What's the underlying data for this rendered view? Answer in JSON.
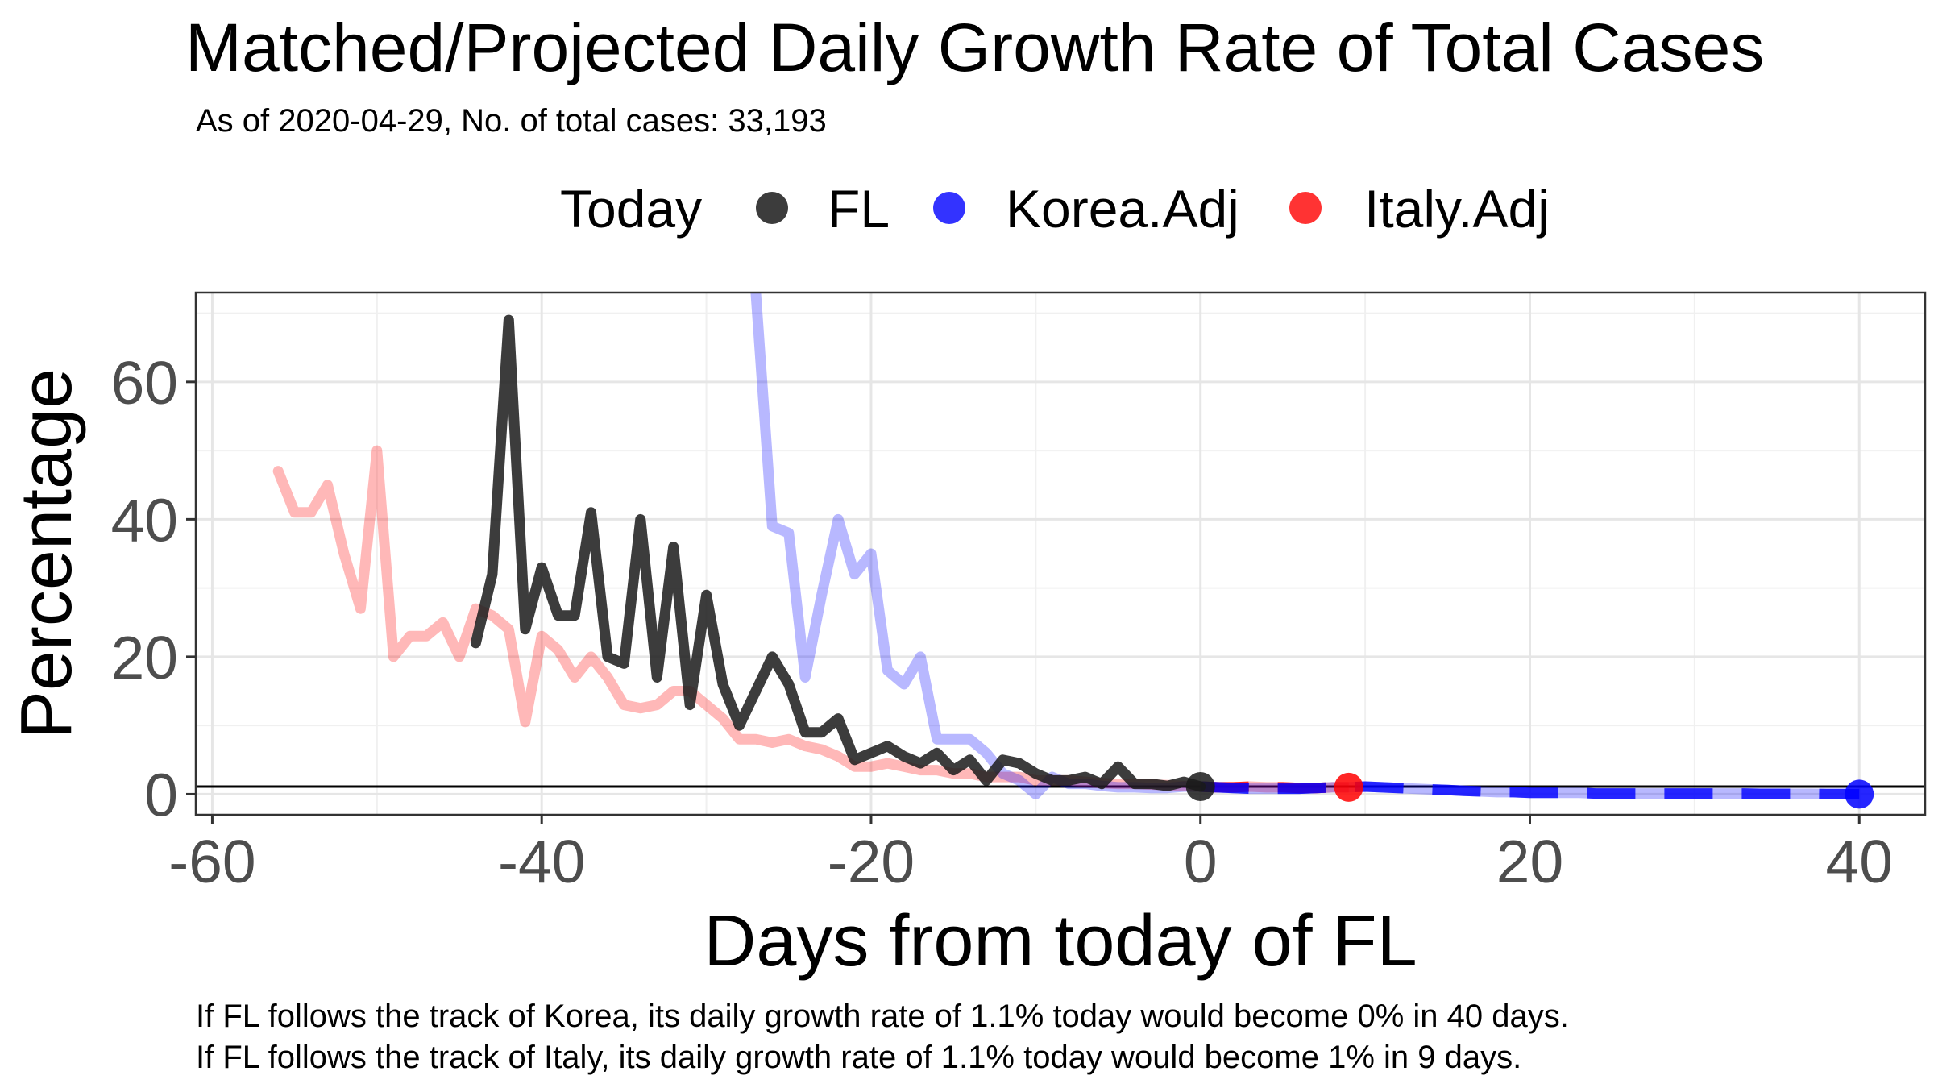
{
  "chart_data": {
    "type": "line",
    "title": "Matched/Projected Daily Growth Rate of Total Cases",
    "subtitle": "As of 2020-04-29, No. of total cases: 33,193",
    "xlabel": "Days from today of FL",
    "ylabel": "Percentage",
    "xlim": [
      -61,
      44
    ],
    "ylim": [
      -3,
      73
    ],
    "x_ticks": [
      -60,
      -40,
      -20,
      0,
      20,
      40
    ],
    "y_ticks": [
      0,
      20,
      40,
      60
    ],
    "grid": true,
    "legend": {
      "title": "Today",
      "placement": "top",
      "items": [
        "FL",
        "Korea.Adj",
        "Italy.Adj"
      ]
    },
    "reference_line_y": 1.1,
    "series": [
      {
        "name": "FL",
        "color": "#1a1a1a",
        "x": [
          -44,
          -43,
          -42,
          -41,
          -40,
          -39,
          -38,
          -37,
          -36,
          -35,
          -34,
          -33,
          -32,
          -31,
          -30,
          -29,
          -28,
          -27,
          -26,
          -25,
          -24,
          -23,
          -22,
          -21,
          -20,
          -19,
          -18,
          -17,
          -16,
          -15,
          -14,
          -13,
          -12,
          -11,
          -10,
          -9,
          -8,
          -7,
          -6,
          -5,
          -4,
          -3,
          -2,
          -1,
          0
        ],
        "y": [
          22,
          32,
          69,
          24,
          33,
          26,
          26,
          41,
          20,
          19,
          40,
          17,
          36,
          13,
          29,
          16,
          10,
          15,
          20,
          16,
          9,
          9,
          11,
          5,
          6,
          7,
          5.5,
          4.5,
          6,
          3.5,
          5,
          2,
          5,
          4.5,
          3,
          2,
          2,
          2.5,
          1.5,
          4,
          1.5,
          1.5,
          1.2,
          1.8,
          1.1
        ]
      },
      {
        "name": "Korea.Adj",
        "color": "#0000ff",
        "x": [
          -27,
          -26,
          -25,
          -24,
          -23,
          -22,
          -21,
          -20,
          -19,
          -18,
          -17,
          -16,
          -15,
          -14,
          -13,
          -12,
          -11,
          -10,
          -9,
          -8,
          -7,
          -6,
          -5,
          -4,
          -3,
          -2,
          -1,
          0,
          1,
          2,
          3,
          4,
          5,
          6,
          7,
          8,
          9,
          10,
          11,
          12,
          13,
          14,
          15,
          16,
          17,
          18,
          19,
          20,
          21,
          22,
          23,
          24,
          25,
          26,
          27,
          28,
          29,
          30,
          31,
          32,
          33,
          34,
          35,
          36,
          37,
          38,
          39,
          40
        ],
        "y": [
          73,
          39,
          38,
          17,
          29,
          40,
          32,
          35,
          18,
          16,
          20,
          8,
          8,
          8,
          6,
          3,
          2,
          0,
          2.5,
          1.5,
          1.5,
          1.2,
          1,
          1,
          0.9,
          0.9,
          1.1,
          1.1,
          1,
          0.9,
          0.8,
          0.8,
          0.8,
          0.8,
          0.9,
          1,
          1,
          1.1,
          1,
          0.9,
          0.8,
          0.7,
          0.6,
          0.5,
          0.4,
          0.3,
          0.3,
          0.2,
          0.2,
          0.2,
          0.2,
          0.1,
          0.1,
          0.1,
          0.1,
          0.1,
          0.1,
          0.1,
          0.1,
          0.1,
          0.1,
          0.05,
          0.05,
          0.05,
          0.05,
          0.02,
          0.01,
          0
        ],
        "projection_start_x": 0
      },
      {
        "name": "Italy.Adj",
        "color": "#ff0000",
        "x": [
          -56,
          -55,
          -54,
          -53,
          -52,
          -51,
          -50,
          -49,
          -48,
          -47,
          -46,
          -45,
          -44,
          -43,
          -42,
          -41,
          -40,
          -39,
          -38,
          -37,
          -36,
          -35,
          -34,
          -33,
          -32,
          -31,
          -30,
          -29,
          -28,
          -27,
          -26,
          -25,
          -24,
          -23,
          -22,
          -21,
          -20,
          -19,
          -18,
          -17,
          -16,
          -15,
          -14,
          -13,
          -12,
          -11,
          -10,
          -9,
          -8,
          -7,
          -6,
          -5,
          -4,
          -3,
          -2,
          -1,
          0,
          1,
          2,
          3,
          4,
          5,
          6,
          7,
          8,
          9
        ],
        "y": [
          47,
          41,
          41,
          45,
          35,
          27,
          50,
          20,
          23,
          23,
          25,
          20,
          27,
          26,
          24,
          10.5,
          23,
          21,
          17,
          20,
          17,
          13,
          12.5,
          13,
          15,
          15,
          13,
          11,
          8,
          8,
          7.5,
          8,
          7,
          6.5,
          5.5,
          4,
          4,
          4.5,
          4,
          3.5,
          3.5,
          3,
          3,
          2.5,
          2.5,
          2.5,
          2,
          2,
          2,
          1.8,
          1.6,
          1.5,
          1.5,
          1.4,
          1.3,
          1.2,
          1.1,
          1,
          1,
          1.1,
          1,
          1,
          0.9,
          0.9,
          1,
          1
        ],
        "projection_start_x": 0
      }
    ],
    "endpoints": [
      {
        "series": "FL",
        "x": 0,
        "y": 1.1
      },
      {
        "series": "Korea.Adj",
        "x": 40,
        "y": 0
      },
      {
        "series": "Italy.Adj",
        "x": 9,
        "y": 1
      }
    ],
    "captions": [
      "If FL follows the track of Korea, its daily growth rate of 1.1% today would become 0% in 40 days.",
      "If FL follows the track of Italy, its daily growth rate of 1.1% today would become 1% in 9 days."
    ]
  }
}
